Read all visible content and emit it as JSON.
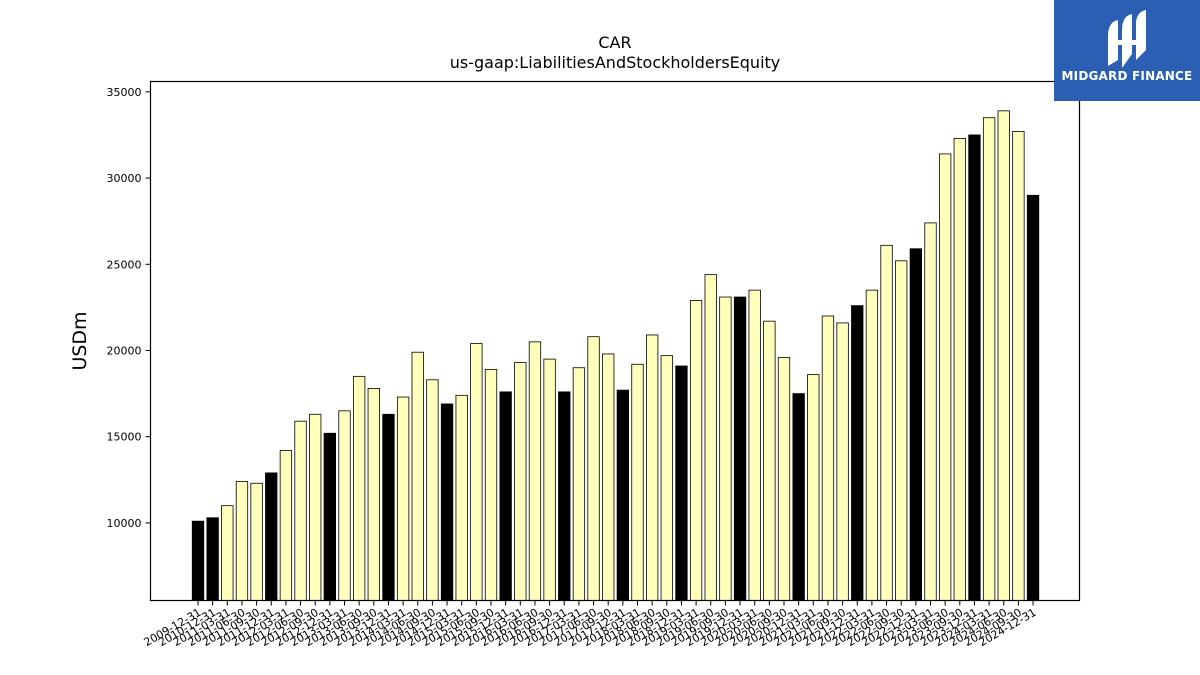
{
  "chart_data": {
    "type": "bar",
    "title": "CAR",
    "subtitle": "us-gaap:LiabilitiesAndStockholdersEquity",
    "ylabel": "USDm",
    "xlabel": "",
    "ylim": [
      5500,
      35600
    ],
    "yticks": [
      10000,
      15000,
      20000,
      25000,
      30000,
      35000
    ],
    "grid": false,
    "legend": "none",
    "colors": {
      "annual": "#000000",
      "quarterly": "#ffffbb",
      "edge": "#000000"
    },
    "categories": [
      "2009-12-31",
      "2010-12-31",
      "2011-03-31",
      "2011-06-30",
      "2011-09-30",
      "2011-12-31",
      "2012-03-31",
      "2012-06-30",
      "2012-09-30",
      "2012-12-31",
      "2013-03-31",
      "2013-06-30",
      "2013-09-30",
      "2013-12-31",
      "2014-03-31",
      "2014-06-30",
      "2014-09-30",
      "2014-12-31",
      "2015-03-31",
      "2015-06-30",
      "2015-09-30",
      "2015-12-31",
      "2016-03-31",
      "2016-06-30",
      "2016-09-30",
      "2016-12-31",
      "2017-03-31",
      "2017-06-30",
      "2017-09-30",
      "2017-12-31",
      "2018-03-31",
      "2018-06-30",
      "2018-09-30",
      "2018-12-31",
      "2019-03-31",
      "2019-06-30",
      "2019-09-30",
      "2019-12-31",
      "2020-03-31",
      "2020-06-30",
      "2020-09-30",
      "2020-12-31",
      "2021-03-31",
      "2021-06-30",
      "2021-09-30",
      "2021-12-31",
      "2022-03-31",
      "2022-06-30",
      "2022-09-30",
      "2022-12-31",
      "2023-03-31",
      "2023-06-30",
      "2023-09-30",
      "2023-12-31",
      "2024-03-31",
      "2024-06-30",
      "2024-09-30",
      "2024-12-31"
    ],
    "values": [
      10100,
      10300,
      11000,
      12400,
      12300,
      12900,
      14200,
      15900,
      16300,
      15200,
      16500,
      18500,
      17800,
      16300,
      17300,
      19900,
      18300,
      16900,
      17400,
      20400,
      18900,
      17600,
      19300,
      20500,
      19500,
      17600,
      19000,
      20800,
      19800,
      17700,
      19200,
      20900,
      19700,
      19100,
      22900,
      24400,
      23100,
      23100,
      23500,
      21700,
      19600,
      17500,
      18600,
      22000,
      21600,
      22600,
      23500,
      26100,
      25200,
      25900,
      27400,
      31400,
      32300,
      32500,
      33500,
      33900,
      32700,
      29000
    ],
    "period": [
      "annual",
      "annual",
      "quarterly",
      "quarterly",
      "quarterly",
      "annual",
      "quarterly",
      "quarterly",
      "quarterly",
      "annual",
      "quarterly",
      "quarterly",
      "quarterly",
      "annual",
      "quarterly",
      "quarterly",
      "quarterly",
      "annual",
      "quarterly",
      "quarterly",
      "quarterly",
      "annual",
      "quarterly",
      "quarterly",
      "quarterly",
      "annual",
      "quarterly",
      "quarterly",
      "quarterly",
      "annual",
      "quarterly",
      "quarterly",
      "quarterly",
      "annual",
      "quarterly",
      "quarterly",
      "quarterly",
      "annual",
      "quarterly",
      "quarterly",
      "quarterly",
      "annual",
      "quarterly",
      "quarterly",
      "quarterly",
      "annual",
      "quarterly",
      "quarterly",
      "quarterly",
      "annual",
      "quarterly",
      "quarterly",
      "quarterly",
      "annual",
      "quarterly",
      "quarterly",
      "quarterly",
      "annual"
    ]
  },
  "logo": {
    "text": "MIDGARD FINANCE",
    "icon": "midgard-logo-icon"
  }
}
